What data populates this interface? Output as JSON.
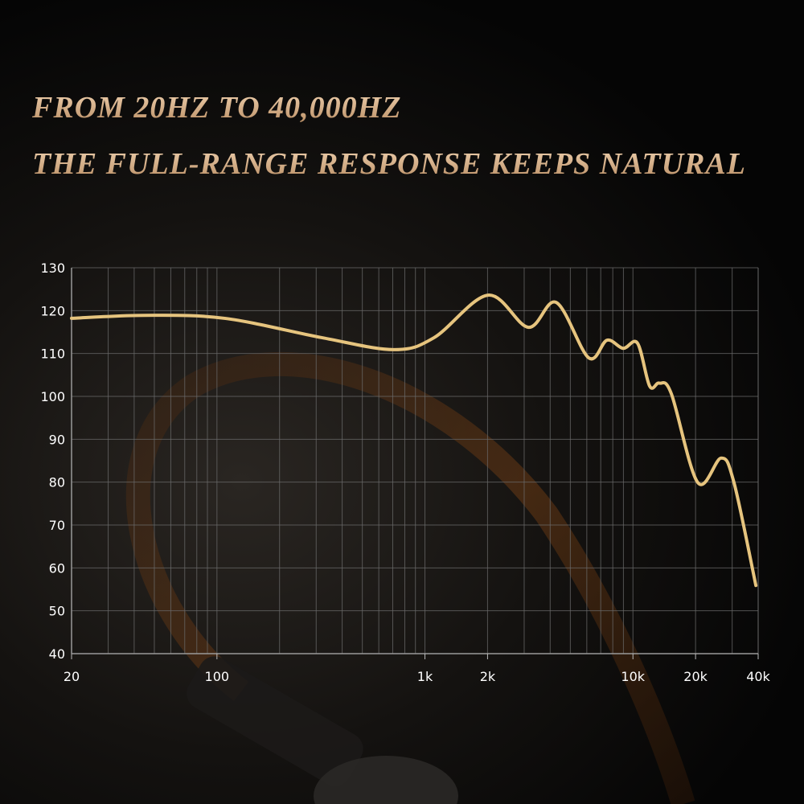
{
  "header": {
    "line1": "FROM 20HZ TO 40,000HZ",
    "line2": "THE FULL-RANGE RESPONSE KEEPS NATURAL"
  },
  "colors": {
    "curve": "#e6c47e",
    "title": "#d8b48c",
    "grid": "#6a6a6a",
    "background": "#0a0a0a"
  },
  "chart_data": {
    "type": "line",
    "title": "",
    "xlabel": "",
    "ylabel": "",
    "x_scale": "log",
    "xlim": [
      20,
      40000
    ],
    "ylim": [
      40,
      130
    ],
    "grid": true,
    "x_ticks": [
      {
        "v": 20,
        "label": "20"
      },
      {
        "v": 100,
        "label": "100"
      },
      {
        "v": 1000,
        "label": "1k"
      },
      {
        "v": 2000,
        "label": "2k"
      },
      {
        "v": 10000,
        "label": "10k"
      },
      {
        "v": 20000,
        "label": "20k"
      },
      {
        "v": 40000,
        "label": "40k"
      }
    ],
    "y_ticks": [
      130,
      120,
      110,
      100,
      90,
      80,
      70,
      60,
      50,
      40
    ],
    "series": [
      {
        "x": [
          20,
          45,
          109,
          319,
          709,
          1107,
          2010,
          3140,
          4280,
          6120,
          7500,
          8970,
          10520,
          12030,
          13390,
          15300,
          20500,
          26550,
          30600,
          39000
        ],
        "y": [
          118.2,
          118.9,
          118.2,
          113.7,
          110.9,
          113.7,
          123.6,
          116.1,
          121.9,
          109,
          113.1,
          111.2,
          112.4,
          102.4,
          103.1,
          100.6,
          79.9,
          85.6,
          79.9,
          55.9
        ]
      }
    ]
  }
}
